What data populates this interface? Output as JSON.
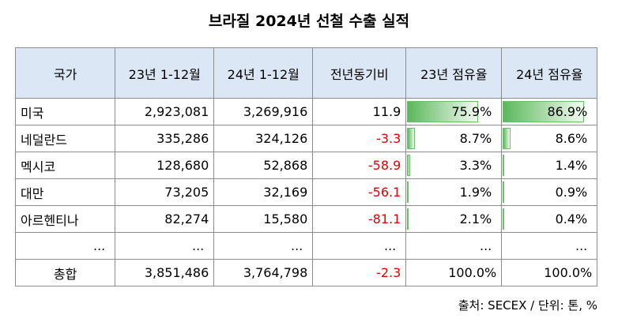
{
  "title": "브라질 2024년 선철 수출 실적",
  "headers": [
    "국가",
    "23년 1-12월",
    "24년 1-12월",
    "전년동기비",
    "23년 점유율",
    "24년 점유율"
  ],
  "rows": [
    {
      "country": "미국",
      "y23": "2,923,081",
      "y24": "3,269,916",
      "yoy": "11.9",
      "yoy_negative": false,
      "share23": "75.9%",
      "share24": "86.9%",
      "share23_value": 75.9,
      "share24_value": 86.9
    },
    {
      "country": "네덜란드",
      "y23": "335,286",
      "y24": "324,126",
      "yoy": "-3.3",
      "yoy_negative": true,
      "share23": "8.7%",
      "share24": "8.6%",
      "share23_value": 8.7,
      "share24_value": 8.6
    },
    {
      "country": "멕시코",
      "y23": "128,680",
      "y24": "52,868",
      "yoy": "-58.9",
      "yoy_negative": true,
      "share23": "3.3%",
      "share24": "1.4%",
      "share23_value": 3.3,
      "share24_value": 1.4
    },
    {
      "country": "대만",
      "y23": "73,205",
      "y24": "32,169",
      "yoy": "-56.1",
      "yoy_negative": true,
      "share23": "1.9%",
      "share24": "0.9%",
      "share23_value": 1.9,
      "share24_value": 0.9
    },
    {
      "country": "아르헨티나",
      "y23": "82,274",
      "y24": "15,580",
      "yoy": "-81.1",
      "yoy_negative": true,
      "share23": "2.1%",
      "share24": "0.4%",
      "share23_value": 2.1,
      "share24_value": 0.4
    }
  ],
  "ellipsis": "...",
  "total": {
    "label": "총합",
    "y23": "3,851,486",
    "y24": "3,764,798",
    "yoy": "-2.3",
    "share23": "100.0%",
    "share24": "100.0%"
  },
  "source": "출처: SECEX / 단위: 톤, %",
  "colors": {
    "header_bg": "#dbe7f4",
    "negative": "#e30000",
    "bar": "#5cb85c",
    "border": "#8c8c8c"
  }
}
